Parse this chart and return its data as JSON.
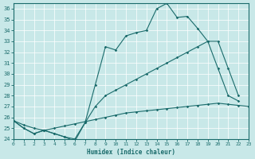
{
  "xlabel": "Humidex (Indice chaleur)",
  "xlim": [
    0,
    23
  ],
  "ylim": [
    24,
    36.5
  ],
  "yticks": [
    24,
    25,
    26,
    27,
    28,
    29,
    30,
    31,
    32,
    33,
    34,
    35,
    36
  ],
  "xticks": [
    0,
    1,
    2,
    3,
    4,
    5,
    6,
    7,
    8,
    9,
    10,
    11,
    12,
    13,
    14,
    15,
    16,
    17,
    18,
    19,
    20,
    21,
    22,
    23
  ],
  "bg_color": "#c8e8e8",
  "line_color": "#1a6b6b",
  "line1_x": [
    0,
    1,
    2,
    3,
    4,
    5,
    6,
    7,
    8,
    9,
    10,
    11,
    12,
    13,
    14,
    15,
    16,
    17,
    18,
    19,
    20,
    21,
    22
  ],
  "line1_y": [
    25.7,
    25.0,
    24.5,
    24.8,
    24.5,
    24.2,
    23.8,
    25.5,
    29.0,
    32.5,
    32.2,
    33.5,
    33.8,
    34.0,
    36.0,
    36.5,
    35.2,
    35.3,
    34.2,
    33.0,
    30.5,
    28.0,
    27.5
  ],
  "line2_x": [
    0,
    1,
    2,
    3,
    4,
    5,
    6,
    7,
    8,
    9,
    10,
    11,
    12,
    13,
    14,
    15,
    16,
    17,
    18,
    19,
    20,
    21,
    22
  ],
  "line2_y": [
    25.7,
    25.0,
    24.5,
    24.8,
    24.5,
    24.2,
    24.0,
    25.5,
    27.0,
    28.0,
    28.5,
    29.0,
    29.5,
    30.0,
    30.5,
    31.0,
    31.5,
    32.0,
    32.5,
    33.0,
    33.0,
    30.5,
    28.0
  ],
  "line3_x": [
    0,
    1,
    2,
    3,
    4,
    5,
    6,
    7,
    8,
    9,
    10,
    11,
    12,
    13,
    14,
    15,
    16,
    17,
    18,
    19,
    20,
    21,
    22,
    23
  ],
  "line3_y": [
    25.7,
    25.3,
    25.0,
    24.8,
    25.0,
    25.2,
    25.4,
    25.6,
    25.8,
    26.0,
    26.2,
    26.4,
    26.5,
    26.6,
    26.7,
    26.8,
    26.9,
    27.0,
    27.1,
    27.2,
    27.3,
    27.2,
    27.1,
    27.0
  ]
}
